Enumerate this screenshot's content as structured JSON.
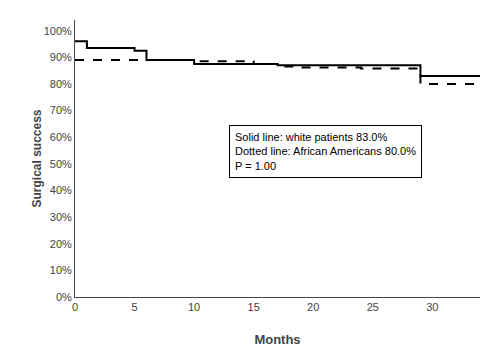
{
  "chart_data": {
    "type": "step",
    "xlabel": "Months",
    "ylabel": "Surgical success",
    "xlim": [
      0,
      34
    ],
    "ylim": [
      0,
      1.04
    ],
    "xticks": [
      0,
      5,
      10,
      15,
      20,
      25,
      30
    ],
    "yticks": [
      {
        "value": 0.0,
        "label": "0%"
      },
      {
        "value": 0.1,
        "label": "10%"
      },
      {
        "value": 0.2,
        "label": "20%"
      },
      {
        "value": 0.3,
        "label": "30%"
      },
      {
        "value": 0.4,
        "label": "40%"
      },
      {
        "value": 0.5,
        "label": "50%"
      },
      {
        "value": 0.6,
        "label": "60%"
      },
      {
        "value": 0.7,
        "label": "70%"
      },
      {
        "value": 0.8,
        "label": "80%"
      },
      {
        "value": 0.9,
        "label": "90%"
      },
      {
        "value": 1.0,
        "label": "100%"
      }
    ],
    "grid": false,
    "series": [
      {
        "color": "#000000",
        "line_style": "solid",
        "x": [
          0,
          1,
          1,
          5,
          5,
          6,
          6,
          10,
          10,
          17,
          17,
          29,
          29,
          34
        ],
        "values": [
          0.96,
          0.96,
          0.935,
          0.935,
          0.925,
          0.925,
          0.89,
          0.89,
          0.875,
          0.875,
          0.87,
          0.87,
          0.83,
          0.83
        ]
      },
      {
        "color": "#000000",
        "line_style": "dashed",
        "x": [
          0,
          10,
          10,
          15,
          15,
          17,
          17,
          19,
          19,
          24,
          24,
          29,
          29,
          34
        ],
        "values": [
          0.89,
          0.89,
          0.885,
          0.885,
          0.875,
          0.875,
          0.865,
          0.865,
          0.862,
          0.862,
          0.858,
          0.858,
          0.8,
          0.8
        ]
      }
    ],
    "annotations": [
      "Solid line: white patients 83.0%",
      "Dotted line: African Americans 80.0%",
      "P = 1.00"
    ]
  }
}
